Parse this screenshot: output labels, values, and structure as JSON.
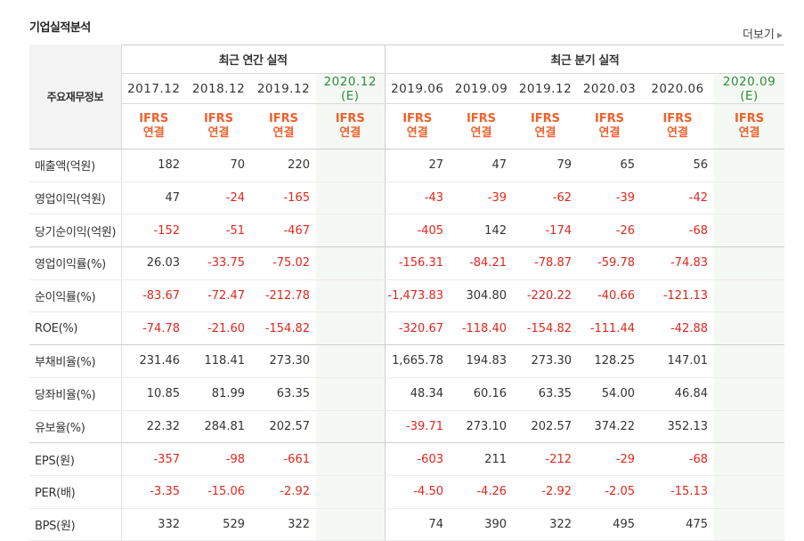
{
  "title": "기업실적분석",
  "more_label": "더보기",
  "header": {
    "row_label": "주요재무정보",
    "group_annual": "최근 연간 실적",
    "group_quarter": "최근 분기 실적",
    "annual_periods": [
      "2017.12",
      "2018.12",
      "2019.12",
      "2020.12"
    ],
    "quarter_periods": [
      "2019.06",
      "2019.09",
      "2019.12",
      "2020.03",
      "2020.06",
      "2020.09"
    ],
    "estimate_mark": "(E)",
    "ifrs_top": "IFRS",
    "ifrs_bottom": "연결"
  },
  "rows": [
    {
      "label": "매출액(억원)",
      "annual": [
        "182",
        "70",
        "220",
        ""
      ],
      "quarter": [
        "27",
        "47",
        "79",
        "65",
        "56",
        ""
      ]
    },
    {
      "label": "영업이익(억원)",
      "annual": [
        "47",
        "-24",
        "-165",
        ""
      ],
      "quarter": [
        "-43",
        "-39",
        "-62",
        "-39",
        "-42",
        ""
      ]
    },
    {
      "label": "당기순이익(억원)",
      "annual": [
        "-152",
        "-51",
        "-467",
        ""
      ],
      "quarter": [
        "-405",
        "142",
        "-174",
        "-26",
        "-68",
        ""
      ]
    },
    {
      "label": "영업이익률(%)",
      "annual": [
        "26.03",
        "-33.75",
        "-75.02",
        ""
      ],
      "quarter": [
        "-156.31",
        "-84.21",
        "-78.87",
        "-59.78",
        "-74.83",
        ""
      ]
    },
    {
      "label": "순이익률(%)",
      "annual": [
        "-83.67",
        "-72.47",
        "-212.78",
        ""
      ],
      "quarter": [
        "-1,473.83",
        "304.80",
        "-220.22",
        "-40.66",
        "-121.13",
        ""
      ]
    },
    {
      "label": "ROE(%)",
      "annual": [
        "-74.78",
        "-21.60",
        "-154.82",
        ""
      ],
      "quarter": [
        "-320.67",
        "-118.40",
        "-154.82",
        "-111.44",
        "-42.88",
        ""
      ]
    },
    {
      "label": "부채비율(%)",
      "annual": [
        "231.46",
        "118.41",
        "273.30",
        ""
      ],
      "quarter": [
        "1,665.78",
        "194.83",
        "273.30",
        "128.25",
        "147.01",
        ""
      ]
    },
    {
      "label": "당좌비율(%)",
      "annual": [
        "10.85",
        "81.99",
        "63.35",
        ""
      ],
      "quarter": [
        "48.34",
        "60.16",
        "63.35",
        "54.00",
        "46.84",
        ""
      ]
    },
    {
      "label": "유보율(%)",
      "annual": [
        "22.32",
        "284.81",
        "202.57",
        ""
      ],
      "quarter": [
        "-39.71",
        "273.10",
        "202.57",
        "374.22",
        "352.13",
        ""
      ]
    },
    {
      "label": "EPS(원)",
      "annual": [
        "-357",
        "-98",
        "-661",
        ""
      ],
      "quarter": [
        "-603",
        "211",
        "-212",
        "-29",
        "-68",
        ""
      ]
    },
    {
      "label": "PER(배)",
      "annual": [
        "-3.35",
        "-15.06",
        "-2.92",
        ""
      ],
      "quarter": [
        "-4.50",
        "-4.26",
        "-2.92",
        "-2.05",
        "-15.13",
        ""
      ]
    },
    {
      "label": "BPS(원)",
      "annual": [
        "332",
        "529",
        "322",
        ""
      ],
      "quarter": [
        "74",
        "390",
        "322",
        "495",
        "475",
        ""
      ]
    }
  ],
  "group_end_rows": [
    2,
    5,
    8
  ],
  "colors": {
    "negative": "#e1261c",
    "ifrs": "#f0602c",
    "estimate": "#2e8b3c",
    "estimate_bg": "#f5f9f3"
  }
}
